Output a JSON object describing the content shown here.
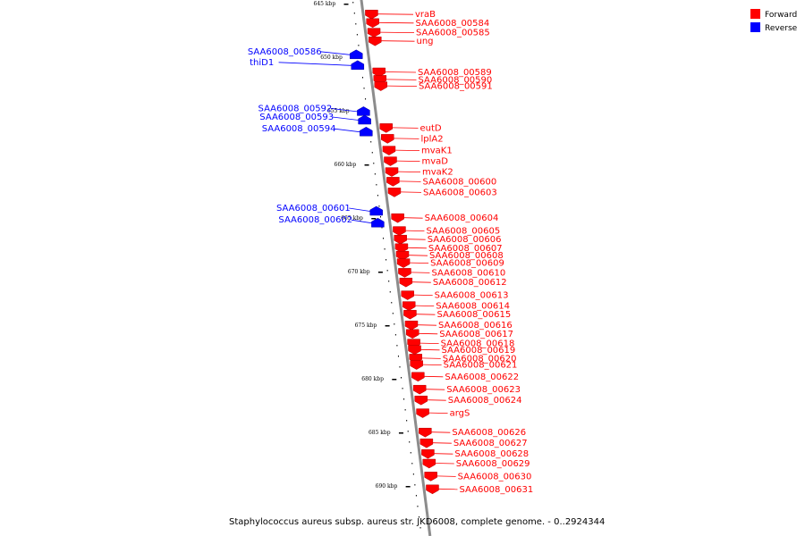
{
  "caption": "Staphylococcus aureus subsp. aureus str. JKD6008, complete genome. - 0..2924344",
  "legend": [
    {
      "label": "Forward",
      "color": "#ff0000"
    },
    {
      "label": "Reverse",
      "color": "#0000ff"
    }
  ],
  "colors": {
    "forward": "#ff0000",
    "reverse": "#0000ff",
    "backbone": "#8c8c8c"
  },
  "ticks": [
    {
      "label": "645 kbp",
      "kbp": 645
    },
    {
      "label": "650 kbp",
      "kbp": 650
    },
    {
      "label": "655 kbp",
      "kbp": 655
    },
    {
      "label": "660 kbp",
      "kbp": 660
    },
    {
      "label": "665 kbp",
      "kbp": 665
    },
    {
      "label": "670 kbp",
      "kbp": 670
    },
    {
      "label": "675 kbp",
      "kbp": 675
    },
    {
      "label": "680 kbp",
      "kbp": 680
    },
    {
      "label": "685 kbp",
      "kbp": 685
    },
    {
      "label": "690 kbp",
      "kbp": 690
    }
  ],
  "genes": [
    {
      "label": "vraB",
      "strand": "forward",
      "kbp": 645.6
    },
    {
      "label": "SAA6008_00584",
      "strand": "forward",
      "kbp": 646.4
    },
    {
      "label": "SAA6008_00585",
      "strand": "forward",
      "kbp": 647.3
    },
    {
      "label": "ung",
      "strand": "forward",
      "kbp": 648.1
    },
    {
      "label": "SAA6008_00586",
      "strand": "reverse",
      "kbp": 649.4
    },
    {
      "label": "thiD1",
      "strand": "reverse",
      "kbp": 650.4
    },
    {
      "label": "SAA6008_00589",
      "strand": "forward",
      "kbp": 651.0
    },
    {
      "label": "SAA6008_00590",
      "strand": "forward",
      "kbp": 651.7
    },
    {
      "label": "SAA6008_00591",
      "strand": "forward",
      "kbp": 652.3
    },
    {
      "label": "SAA6008_00592",
      "strand": "reverse",
      "kbp": 654.7
    },
    {
      "label": "SAA6008_00593",
      "strand": "reverse",
      "kbp": 655.5
    },
    {
      "label": "eutD",
      "strand": "forward",
      "kbp": 656.2
    },
    {
      "label": "SAA6008_00594",
      "strand": "reverse",
      "kbp": 656.6
    },
    {
      "label": "lplA2",
      "strand": "forward",
      "kbp": 657.2
    },
    {
      "label": "mvaK1",
      "strand": "forward",
      "kbp": 658.3
    },
    {
      "label": "mvaD",
      "strand": "forward",
      "kbp": 659.3
    },
    {
      "label": "mvaK2",
      "strand": "forward",
      "kbp": 660.3
    },
    {
      "label": "SAA6008_00600",
      "strand": "forward",
      "kbp": 661.2
    },
    {
      "label": "SAA6008_00603",
      "strand": "forward",
      "kbp": 662.2
    },
    {
      "label": "SAA6008_00601",
      "strand": "reverse",
      "kbp": 664.0
    },
    {
      "label": "SAA6008_00604",
      "strand": "forward",
      "kbp": 664.6
    },
    {
      "label": "SAA6008_00602",
      "strand": "reverse",
      "kbp": 665.1
    },
    {
      "label": "SAA6008_00605",
      "strand": "forward",
      "kbp": 665.8
    },
    {
      "label": "SAA6008_00606",
      "strand": "forward",
      "kbp": 666.6
    },
    {
      "label": "SAA6008_00607",
      "strand": "forward",
      "kbp": 667.4
    },
    {
      "label": "SAA6008_00608",
      "strand": "forward",
      "kbp": 668.1
    },
    {
      "label": "SAA6008_00609",
      "strand": "forward",
      "kbp": 668.8
    },
    {
      "label": "SAA6008_00610",
      "strand": "forward",
      "kbp": 669.7
    },
    {
      "label": "SAA6008_00612",
      "strand": "forward",
      "kbp": 670.6
    },
    {
      "label": "SAA6008_00613",
      "strand": "forward",
      "kbp": 671.8
    },
    {
      "label": "SAA6008_00614",
      "strand": "forward",
      "kbp": 672.8
    },
    {
      "label": "SAA6008_00615",
      "strand": "forward",
      "kbp": 673.6
    },
    {
      "label": "SAA6008_00616",
      "strand": "forward",
      "kbp": 674.6
    },
    {
      "label": "SAA6008_00617",
      "strand": "forward",
      "kbp": 675.4
    },
    {
      "label": "SAA6008_00618",
      "strand": "forward",
      "kbp": 676.3
    },
    {
      "label": "SAA6008_00619",
      "strand": "forward",
      "kbp": 676.9
    },
    {
      "label": "SAA6008_00620",
      "strand": "forward",
      "kbp": 677.7
    },
    {
      "label": "SAA6008_00621",
      "strand": "forward",
      "kbp": 678.3
    },
    {
      "label": "SAA6008_00622",
      "strand": "forward",
      "kbp": 679.4
    },
    {
      "label": "SAA6008_00623",
      "strand": "forward",
      "kbp": 680.6
    },
    {
      "label": "SAA6008_00624",
      "strand": "forward",
      "kbp": 681.6
    },
    {
      "label": "argS",
      "strand": "forward",
      "kbp": 682.8
    },
    {
      "label": "SAA6008_00626",
      "strand": "forward",
      "kbp": 684.6
    },
    {
      "label": "SAA6008_00627",
      "strand": "forward",
      "kbp": 685.6
    },
    {
      "label": "SAA6008_00628",
      "strand": "forward",
      "kbp": 686.6
    },
    {
      "label": "SAA6008_00629",
      "strand": "forward",
      "kbp": 687.5
    },
    {
      "label": "SAA6008_00630",
      "strand": "forward",
      "kbp": 688.7
    },
    {
      "label": "SAA6008_00631",
      "strand": "forward",
      "kbp": 689.9
    }
  ]
}
